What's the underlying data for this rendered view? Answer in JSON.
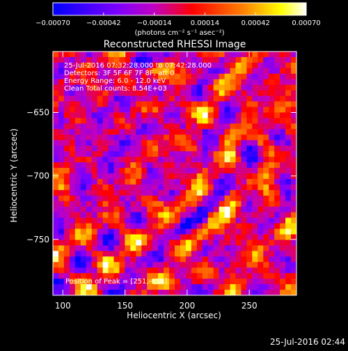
{
  "chart_data": {
    "type": "heatmap",
    "title": "Reconstructed RHESSI Image",
    "xlabel": "Heliocentric X (arcsec)",
    "ylabel": "Heliocentric Y (arcsec)",
    "xlim": [
      92,
      288
    ],
    "ylim": [
      -794,
      -602
    ],
    "x_ticks": [
      100,
      150,
      200,
      250
    ],
    "y_ticks": [
      -650,
      -700,
      -750
    ],
    "x_tick_labels": [
      "100",
      "150",
      "200",
      "250"
    ],
    "y_tick_labels": [
      "−650",
      "−700",
      "−750"
    ],
    "colorbar": {
      "range": [
        -0.0007,
        0.0007
      ],
      "ticks": [
        -0.0007,
        -0.00042,
        -0.00014,
        0.00014,
        0.00042,
        0.0007
      ],
      "tick_labels": [
        "−0.00070",
        "−0.00042",
        "−0.00014",
        "0.00014",
        "0.00042",
        "0.00070"
      ],
      "unit_label": "(photons cm⁻² s⁻¹ asec⁻²)",
      "colors": [
        "#0000ff",
        "#7a00ff",
        "#c000c0",
        "#ff0000",
        "#ff8000",
        "#ffff00",
        "#ffffff"
      ]
    },
    "annotations": [
      "25-Jul-2016 07:32:28.000 to 07:42:28.000",
      "Detectors: 3F 5F 6F 7F 8F, att 0",
      "Energy Range: 6.0 - 12.0 keV",
      "Clean     Total counts: 8.54E+03"
    ],
    "peak_label": "Position of Peak = [251,-656]",
    "peak": [
      251,
      -656
    ],
    "grid": false
  },
  "timestamp": "25-Jul-2016 02:44"
}
